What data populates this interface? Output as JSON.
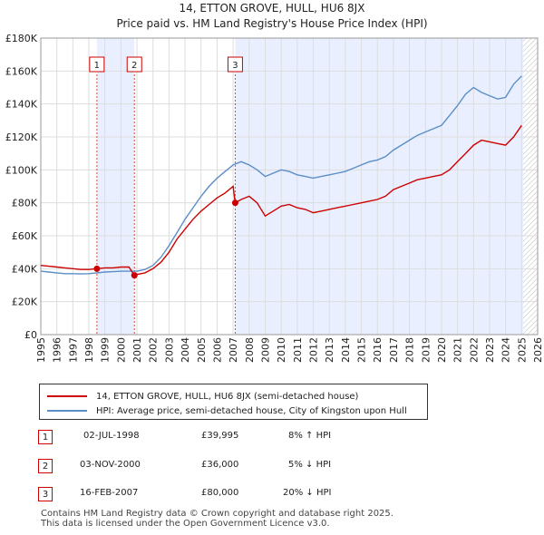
{
  "chart_data": {
    "type": "line",
    "title": "14, ETTON GROVE, HULL, HU6 8JX",
    "subtitle": "Price paid vs. HM Land Registry's House Price Index (HPI)",
    "xlim": [
      1995,
      2026
    ],
    "ylim": [
      0,
      180000
    ],
    "y_ticks": [
      0,
      20000,
      40000,
      60000,
      80000,
      100000,
      120000,
      140000,
      160000,
      180000
    ],
    "y_tick_labels": [
      "£0",
      "£20K",
      "£40K",
      "£60K",
      "£80K",
      "£100K",
      "£120K",
      "£140K",
      "£160K",
      "£180K"
    ],
    "x_ticks": [
      1995,
      1996,
      1997,
      1998,
      1999,
      2000,
      2001,
      2002,
      2003,
      2004,
      2005,
      2006,
      2007,
      2008,
      2009,
      2010,
      2011,
      2012,
      2013,
      2014,
      2015,
      2016,
      2017,
      2018,
      2019,
      2020,
      2021,
      2022,
      2023,
      2024,
      2025,
      2026
    ],
    "grid": true,
    "shaded_after_sale": true,
    "hatched_region_start": 2025.1,
    "series": [
      {
        "name": "14, ETTON GROVE, HULL, HU6 8JX (semi-detached house)",
        "color": "#cc0000",
        "x": [
          1995.0,
          1995.5,
          1996.0,
          1996.5,
          1997.0,
          1997.5,
          1998.0,
          1998.5,
          1999.0,
          1999.5,
          2000.0,
          2000.5,
          2000.84,
          2001.0,
          2001.5,
          2002.0,
          2002.5,
          2003.0,
          2003.5,
          2004.0,
          2004.5,
          2005.0,
          2005.5,
          2006.0,
          2006.5,
          2007.0,
          2007.13,
          2007.5,
          2008.0,
          2008.5,
          2009.0,
          2009.5,
          2010.0,
          2010.5,
          2011.0,
          2011.5,
          2012.0,
          2012.5,
          2013.0,
          2013.5,
          2014.0,
          2014.5,
          2015.0,
          2015.5,
          2016.0,
          2016.5,
          2017.0,
          2017.5,
          2018.0,
          2018.5,
          2019.0,
          2019.5,
          2020.0,
          2020.5,
          2021.0,
          2021.5,
          2022.0,
          2022.5,
          2023.0,
          2023.5,
          2024.0,
          2024.5,
          2025.0
        ],
        "y": [
          42000,
          41500,
          41000,
          40500,
          40000,
          39500,
          39500,
          40000,
          40500,
          40500,
          41000,
          41000,
          36000,
          36500,
          37500,
          40000,
          44000,
          50000,
          58000,
          64000,
          70000,
          75000,
          79000,
          83000,
          86000,
          90000,
          80000,
          82000,
          84000,
          80000,
          72000,
          75000,
          78000,
          79000,
          77000,
          76000,
          74000,
          75000,
          76000,
          77000,
          78000,
          79000,
          80000,
          81000,
          82000,
          84000,
          88000,
          90000,
          92000,
          94000,
          95000,
          96000,
          97000,
          100000,
          105000,
          110000,
          115000,
          118000,
          117000,
          116000,
          115000,
          120000,
          127000
        ]
      },
      {
        "name": "HPI: Average price, semi-detached house, City of Kingston upon Hull",
        "color": "#5b8ec7",
        "x": [
          1995.0,
          1995.5,
          1996.0,
          1996.5,
          1997.0,
          1997.5,
          1998.0,
          1998.5,
          1999.0,
          1999.5,
          2000.0,
          2000.5,
          2001.0,
          2001.5,
          2002.0,
          2002.5,
          2003.0,
          2003.5,
          2004.0,
          2004.5,
          2005.0,
          2005.5,
          2006.0,
          2006.5,
          2007.0,
          2007.5,
          2008.0,
          2008.5,
          2009.0,
          2009.5,
          2010.0,
          2010.5,
          2011.0,
          2011.5,
          2012.0,
          2012.5,
          2013.0,
          2013.5,
          2014.0,
          2014.5,
          2015.0,
          2015.5,
          2016.0,
          2016.5,
          2017.0,
          2017.5,
          2018.0,
          2018.5,
          2019.0,
          2019.5,
          2020.0,
          2020.5,
          2021.0,
          2021.5,
          2022.0,
          2022.5,
          2023.0,
          2023.5,
          2024.0,
          2024.5,
          2025.0
        ],
        "y": [
          38500,
          38000,
          37500,
          37000,
          37000,
          36800,
          37000,
          37500,
          38000,
          38200,
          38500,
          38500,
          38500,
          39500,
          42000,
          47000,
          54000,
          62000,
          70000,
          77000,
          84000,
          90000,
          95000,
          99000,
          103000,
          105000,
          103000,
          100000,
          96000,
          98000,
          100000,
          99000,
          97000,
          96000,
          95000,
          96000,
          97000,
          98000,
          99000,
          101000,
          103000,
          105000,
          106000,
          108000,
          112000,
          115000,
          118000,
          121000,
          123000,
          125000,
          127000,
          133000,
          139000,
          146000,
          150000,
          147000,
          145000,
          143000,
          144000,
          152000,
          157000
        ]
      }
    ],
    "sales": [
      {
        "num": "1",
        "x": 1998.5,
        "y": 39995
      },
      {
        "num": "2",
        "x": 2000.84,
        "y": 36000
      },
      {
        "num": "3",
        "x": 2007.13,
        "y": 80000
      }
    ]
  },
  "legend": {
    "property": "14, ETTON GROVE, HULL, HU6 8JX (semi-detached house)",
    "hpi": "HPI: Average price, semi-detached house, City of Kingston upon Hull"
  },
  "sales_table": [
    {
      "num": "1",
      "date": "02-JUL-1998",
      "price": "£39,995",
      "hpi": "8% ↑ HPI"
    },
    {
      "num": "2",
      "date": "03-NOV-2000",
      "price": "£36,000",
      "hpi": "5% ↓ HPI"
    },
    {
      "num": "3",
      "date": "16-FEB-2007",
      "price": "£80,000",
      "hpi": "20% ↓ HPI"
    }
  ],
  "footer": {
    "line1": "Contains HM Land Registry data © Crown copyright and database right 2025.",
    "line2": "This data is licensed under the Open Government Licence v3.0."
  }
}
